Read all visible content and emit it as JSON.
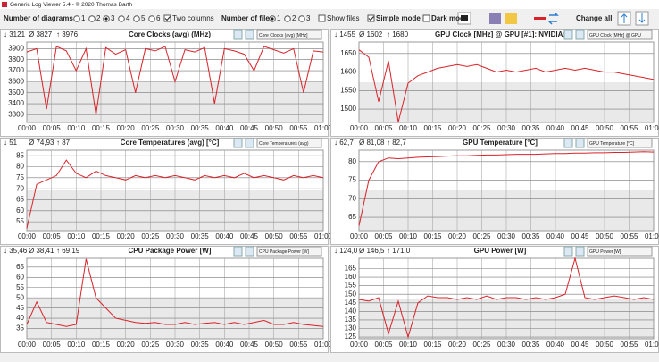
{
  "window": {
    "title": "Generic Log Viewer 5.4 - © 2020 Thomas Barth"
  },
  "toolbar": {
    "diagrams": {
      "label": "Number of diagrams",
      "options": [
        {
          "label": "1",
          "checked": false
        },
        {
          "label": "2",
          "checked": false
        },
        {
          "label": "3",
          "checked": true
        },
        {
          "label": "4",
          "checked": false
        },
        {
          "label": "5",
          "checked": false
        },
        {
          "label": "6",
          "checked": false
        }
      ]
    },
    "two_columns": {
      "label": "Two columns",
      "checked": true
    },
    "files": {
      "label": "Number of files",
      "options": [
        {
          "label": "1",
          "checked": true
        },
        {
          "label": "2",
          "checked": false
        },
        {
          "label": "3",
          "checked": false
        }
      ]
    },
    "show_files": {
      "label": "Show files",
      "checked": false
    },
    "simple_mode": {
      "label": "Simple mode",
      "checked": true
    },
    "dark_mode": {
      "label": "Dark mod",
      "checked": false
    },
    "change_all": "Change all"
  },
  "chart_data": [
    {
      "type": "line",
      "title": "Core Clocks (avg) (MHz)",
      "selector": "Core Clocks (avg) [MHz]",
      "stats": {
        "min": "↓ 3121",
        "avg": "Ø 3827",
        "max": "↑ 3976"
      },
      "x": [
        0,
        2,
        4,
        6,
        8,
        10,
        12,
        14,
        16,
        18,
        20,
        22,
        24,
        26,
        28,
        30,
        32,
        34,
        36,
        38,
        40,
        42,
        44,
        46,
        48,
        50,
        52,
        54,
        56,
        58,
        60
      ],
      "series": [
        {
          "color": "#d9232a",
          "values": [
            3870,
            3900,
            3350,
            3920,
            3880,
            3700,
            3900,
            3300,
            3910,
            3850,
            3890,
            3500,
            3900,
            3880,
            3920,
            3600,
            3890,
            3870,
            3910,
            3400,
            3900,
            3880,
            3850,
            3700,
            3920,
            3890,
            3860,
            3900,
            3500,
            3880,
            3870
          ]
        }
      ],
      "xlim": [
        0,
        60
      ],
      "ylim": [
        3230,
        3960
      ],
      "yticks": [
        3300,
        3400,
        3500,
        3600,
        3700,
        3800,
        3900
      ],
      "xticks": [
        {
          "value": 0,
          "label": "00:00"
        },
        {
          "value": 5,
          "label": "00:05"
        },
        {
          "value": 10,
          "label": "00:10"
        },
        {
          "value": 15,
          "label": "00:15"
        },
        {
          "value": 20,
          "label": "00:20"
        },
        {
          "value": 25,
          "label": "00:25"
        },
        {
          "value": 30,
          "label": "00:30"
        },
        {
          "value": 35,
          "label": "00:35"
        },
        {
          "value": 40,
          "label": "00:40"
        },
        {
          "value": 45,
          "label": "00:45"
        },
        {
          "value": 50,
          "label": "00:50"
        },
        {
          "value": 55,
          "label": "00:55"
        },
        {
          "value": 60,
          "label": "01:00"
        }
      ],
      "grid": true
    },
    {
      "type": "line",
      "title": "GPU Clock [MHz] @ GPU [#1]: NVIDIA:",
      "selector": "GPU Clock [MHz] @ GPU",
      "stats": {
        "min": "↓ 1455",
        "avg": "Ø 1602",
        "max": "↑ 1680"
      },
      "x": [
        0,
        2,
        4,
        6,
        8,
        10,
        12,
        14,
        16,
        18,
        20,
        22,
        24,
        26,
        28,
        30,
        32,
        34,
        36,
        38,
        40,
        42,
        44,
        46,
        48,
        50,
        52,
        54,
        56,
        58,
        60
      ],
      "series": [
        {
          "color": "#d9232a",
          "values": [
            1660,
            1640,
            1520,
            1630,
            1465,
            1570,
            1590,
            1600,
            1610,
            1615,
            1620,
            1615,
            1620,
            1610,
            1600,
            1605,
            1600,
            1605,
            1610,
            1600,
            1605,
            1610,
            1605,
            1610,
            1605,
            1600,
            1600,
            1595,
            1590,
            1585,
            1580
          ]
        }
      ],
      "xlim": [
        0,
        60
      ],
      "ylim": [
        1464,
        1681
      ],
      "yticks": [
        1500,
        1550,
        1600,
        1650
      ],
      "xticks": [
        {
          "value": 0,
          "label": "00:00"
        },
        {
          "value": 5,
          "label": "00:05"
        },
        {
          "value": 10,
          "label": "00:10"
        },
        {
          "value": 15,
          "label": "00:15"
        },
        {
          "value": 20,
          "label": "00:20"
        },
        {
          "value": 25,
          "label": "00:25"
        },
        {
          "value": 30,
          "label": "00:30"
        },
        {
          "value": 35,
          "label": "00:35"
        },
        {
          "value": 40,
          "label": "00:40"
        },
        {
          "value": 45,
          "label": "00:45"
        },
        {
          "value": 50,
          "label": "00:50"
        },
        {
          "value": 55,
          "label": "00:55"
        },
        {
          "value": 60,
          "label": "01:00"
        }
      ],
      "grid": true
    },
    {
      "type": "line",
      "title": "Core Temperatures (avg) [°C]",
      "selector": "Core Temperatures (avg)",
      "stats": {
        "min": "↓ 51",
        "avg": "Ø 74,93",
        "max": "↑ 87"
      },
      "x": [
        0,
        2,
        4,
        6,
        8,
        10,
        12,
        14,
        16,
        18,
        20,
        22,
        24,
        26,
        28,
        30,
        32,
        34,
        36,
        38,
        40,
        42,
        44,
        46,
        48,
        50,
        52,
        54,
        56,
        58,
        60
      ],
      "series": [
        {
          "color": "#d9232a",
          "values": [
            52,
            72,
            74,
            76,
            83,
            77,
            75,
            78,
            76,
            75,
            74,
            76,
            75,
            76,
            75,
            76,
            75,
            74,
            76,
            75,
            76,
            75,
            77,
            75,
            76,
            75,
            74,
            76,
            75,
            76,
            75
          ]
        }
      ],
      "xlim": [
        0,
        60
      ],
      "ylim": [
        51,
        87.5
      ],
      "yticks": [
        55,
        60,
        65,
        70,
        75,
        80,
        85
      ],
      "xticks": [
        {
          "value": 0,
          "label": "00:00"
        },
        {
          "value": 5,
          "label": "00:05"
        },
        {
          "value": 10,
          "label": "00:10"
        },
        {
          "value": 15,
          "label": "00:15"
        },
        {
          "value": 20,
          "label": "00:20"
        },
        {
          "value": 25,
          "label": "00:25"
        },
        {
          "value": 30,
          "label": "00:30"
        },
        {
          "value": 35,
          "label": "00:35"
        },
        {
          "value": 40,
          "label": "00:40"
        },
        {
          "value": 45,
          "label": "00:45"
        },
        {
          "value": 50,
          "label": "00:50"
        },
        {
          "value": 55,
          "label": "00:55"
        },
        {
          "value": 60,
          "label": "01:00"
        }
      ],
      "grid": true
    },
    {
      "type": "line",
      "title": "GPU Temperature [°C]",
      "selector": "GPU Temperature [°C]",
      "stats": {
        "min": "↓ 62,7",
        "avg": "Ø 81,08",
        "max": "↑ 82,7"
      },
      "x": [
        0,
        2,
        4,
        6,
        8,
        10,
        12,
        14,
        16,
        18,
        20,
        22,
        24,
        26,
        28,
        30,
        32,
        34,
        36,
        38,
        40,
        42,
        44,
        46,
        48,
        50,
        52,
        54,
        56,
        58,
        60
      ],
      "series": [
        {
          "color": "#d9232a",
          "values": [
            62.7,
            75,
            80,
            81,
            80.8,
            81,
            81.2,
            81.3,
            81.4,
            81.5,
            81.6,
            81.6,
            81.7,
            81.8,
            81.8,
            81.9,
            82,
            82,
            82,
            82.1,
            82.2,
            82.2,
            82.3,
            82.3,
            82.4,
            82.4,
            82.5,
            82.5,
            82.6,
            82.7,
            82.6
          ]
        }
      ],
      "xlim": [
        0,
        60
      ],
      "ylim": [
        61.4,
        83.1
      ],
      "yticks": [
        65,
        70,
        75,
        80
      ],
      "xticks": [
        {
          "value": 0,
          "label": "00:00"
        },
        {
          "value": 5,
          "label": "00:05"
        },
        {
          "value": 10,
          "label": "00:10"
        },
        {
          "value": 15,
          "label": "00:15"
        },
        {
          "value": 20,
          "label": "00:20"
        },
        {
          "value": 25,
          "label": "00:25"
        },
        {
          "value": 30,
          "label": "00:30"
        },
        {
          "value": 35,
          "label": "00:35"
        },
        {
          "value": 40,
          "label": "00:40"
        },
        {
          "value": 45,
          "label": "00:45"
        },
        {
          "value": 50,
          "label": "00:50"
        },
        {
          "value": 55,
          "label": "00:55"
        },
        {
          "value": 60,
          "label": "01:00"
        }
      ],
      "grid": true
    },
    {
      "type": "line",
      "title": "CPU Package Power [W]",
      "selector": "CPU Package Power [W]",
      "stats": {
        "min": "↓ 35,46",
        "avg": "Ø 38,41",
        "max": "↑ 69,19"
      },
      "x": [
        0,
        2,
        4,
        6,
        8,
        10,
        12,
        14,
        16,
        18,
        20,
        22,
        24,
        26,
        28,
        30,
        32,
        34,
        36,
        38,
        40,
        42,
        44,
        46,
        48,
        50,
        52,
        54,
        56,
        58,
        60
      ],
      "series": [
        {
          "color": "#d9232a",
          "values": [
            37,
            48,
            38,
            37,
            36,
            37,
            69,
            50,
            45,
            40,
            39,
            38,
            37.5,
            38,
            37,
            37,
            38,
            37,
            37.5,
            38,
            37,
            38,
            37,
            38,
            39,
            37,
            37,
            38,
            37,
            36.5,
            36
          ]
        }
      ],
      "xlim": [
        0,
        60
      ],
      "ylim": [
        30,
        69.3
      ],
      "yticks": [
        35,
        40,
        45,
        50,
        55,
        60,
        65
      ],
      "xticks": [
        {
          "value": 0,
          "label": "00:00"
        },
        {
          "value": 5,
          "label": "00:05"
        },
        {
          "value": 10,
          "label": "00:10"
        },
        {
          "value": 15,
          "label": "00:15"
        },
        {
          "value": 20,
          "label": "00:20"
        },
        {
          "value": 25,
          "label": "00:25"
        },
        {
          "value": 30,
          "label": "00:30"
        },
        {
          "value": 35,
          "label": "00:35"
        },
        {
          "value": 40,
          "label": "00:40"
        },
        {
          "value": 45,
          "label": "00:45"
        },
        {
          "value": 50,
          "label": "00:50"
        },
        {
          "value": 55,
          "label": "00:55"
        },
        {
          "value": 60,
          "label": "01:00"
        }
      ],
      "grid": true
    },
    {
      "type": "line",
      "title": "GPU Power [W]",
      "selector": "GPU Power [W]",
      "stats": {
        "min": "↓ 124,0",
        "avg": "Ø 146,5",
        "max": "↑ 171,0"
      },
      "x": [
        0,
        2,
        4,
        6,
        8,
        10,
        12,
        14,
        16,
        18,
        20,
        22,
        24,
        26,
        28,
        30,
        32,
        34,
        36,
        38,
        40,
        42,
        44,
        46,
        48,
        50,
        52,
        54,
        56,
        58,
        60
      ],
      "series": [
        {
          "color": "#d9232a",
          "values": [
            147,
            146,
            148,
            127,
            146,
            125,
            145,
            149,
            148,
            148,
            147,
            148,
            147,
            149,
            147,
            148,
            148,
            147,
            148,
            147,
            148,
            150,
            171,
            148,
            147,
            148,
            149,
            148,
            147,
            148,
            147
          ]
        }
      ],
      "xlim": [
        0,
        60
      ],
      "ylim": [
        124,
        171
      ],
      "yticks": [
        125,
        130,
        135,
        140,
        145,
        150,
        155,
        160,
        165
      ],
      "xticks": [
        {
          "value": 0,
          "label": "00:00"
        },
        {
          "value": 5,
          "label": "00:05"
        },
        {
          "value": 10,
          "label": "00:10"
        },
        {
          "value": 15,
          "label": "00:15"
        },
        {
          "value": 20,
          "label": "00:20"
        },
        {
          "value": 25,
          "label": "00:25"
        },
        {
          "value": 30,
          "label": "00:30"
        },
        {
          "value": 35,
          "label": "00:35"
        },
        {
          "value": 40,
          "label": "00:40"
        },
        {
          "value": 45,
          "label": "00:45"
        },
        {
          "value": 50,
          "label": "00:50"
        },
        {
          "value": 55,
          "label": "00:55"
        },
        {
          "value": 60,
          "label": "01:00"
        }
      ],
      "grid": true
    }
  ]
}
